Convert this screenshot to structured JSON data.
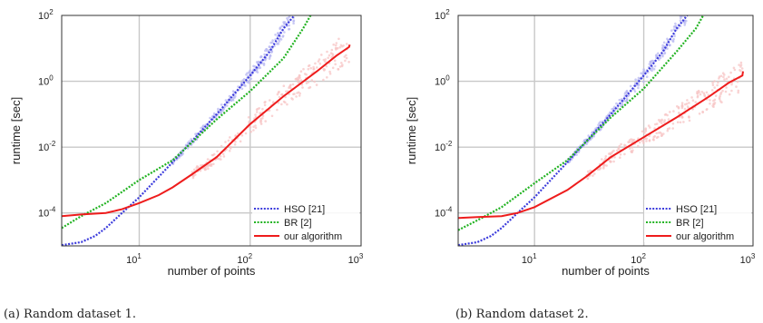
{
  "colors": {
    "hso": "#3b3bdc",
    "hso_band": "#b8b8f2",
    "br": "#22b322",
    "ours": "#ee1c1c",
    "ours_band": "#f7c4c4",
    "grid": "#c8c8c8"
  },
  "chart_data": [
    {
      "type": "line",
      "caption": "(a) Random dataset 1.",
      "xlabel": "number of points",
      "ylabel": "runtime [sec]",
      "xscale": "log",
      "yscale": "log",
      "xlim": [
        2,
        1000
      ],
      "ylim": [
        1e-05,
        100
      ],
      "grid": true,
      "legend_position": "bottom-right",
      "x_ticks": [
        {
          "value": 10,
          "base": "10",
          "exp": "1"
        },
        {
          "value": 100,
          "base": "10",
          "exp": "2"
        },
        {
          "value": 1000,
          "base": "10",
          "exp": "3"
        }
      ],
      "y_ticks": [
        {
          "value": 0.0001,
          "base": "10",
          "exp": "-4"
        },
        {
          "value": 0.01,
          "base": "10",
          "exp": "-2"
        },
        {
          "value": 1,
          "base": "10",
          "exp": "0"
        },
        {
          "value": 100,
          "base": "10",
          "exp": "2"
        }
      ],
      "series": [
        {
          "name": "HSO [21]",
          "style": "dotted",
          "color_key": "hso",
          "band": true,
          "points": [
            [
              2,
              1.05e-05
            ],
            [
              3,
              1.3e-05
            ],
            [
              4,
              2e-05
            ],
            [
              5,
              3.5e-05
            ],
            [
              7,
              0.0001
            ],
            [
              10,
              0.0003
            ],
            [
              20,
              0.0035
            ],
            [
              50,
              0.1
            ],
            [
              100,
              1.5
            ],
            [
              150,
              8
            ],
            [
              200,
              40
            ],
            [
              250,
              100
            ]
          ]
        },
        {
          "name": "BR [2]",
          "style": "dotted",
          "color_key": "br",
          "band": false,
          "points": [
            [
              2,
              3.5e-05
            ],
            [
              3,
              8e-05
            ],
            [
              5,
              0.0002
            ],
            [
              10,
              0.001
            ],
            [
              20,
              0.004
            ],
            [
              50,
              0.07
            ],
            [
              100,
              0.5
            ],
            [
              200,
              5
            ],
            [
              300,
              40
            ],
            [
              350,
              100
            ]
          ]
        },
        {
          "name": "our algorithm",
          "style": "solid",
          "color_key": "ours",
          "band": true,
          "points": [
            [
              2,
              8e-05
            ],
            [
              3,
              9e-05
            ],
            [
              5,
              0.0001
            ],
            [
              7,
              0.00013
            ],
            [
              10,
              0.0002
            ],
            [
              15,
              0.00035
            ],
            [
              20,
              0.0006
            ],
            [
              30,
              0.0015
            ],
            [
              50,
              0.005
            ],
            [
              100,
              0.05
            ],
            [
              200,
              0.35
            ],
            [
              400,
              2
            ],
            [
              600,
              6
            ],
            [
              780,
              11
            ],
            [
              790,
              13
            ]
          ]
        }
      ]
    },
    {
      "type": "line",
      "caption": "(b) Random dataset 2.",
      "xlabel": "number of points",
      "ylabel": "runtime [sec]",
      "xscale": "log",
      "yscale": "log",
      "xlim": [
        2,
        1000
      ],
      "ylim": [
        1e-05,
        100
      ],
      "grid": true,
      "legend_position": "bottom-right",
      "x_ticks": [
        {
          "value": 10,
          "base": "10",
          "exp": "1"
        },
        {
          "value": 100,
          "base": "10",
          "exp": "2"
        },
        {
          "value": 1000,
          "base": "10",
          "exp": "3"
        }
      ],
      "y_ticks": [
        {
          "value": 0.0001,
          "base": "10",
          "exp": "-4"
        },
        {
          "value": 0.01,
          "base": "10",
          "exp": "-2"
        },
        {
          "value": 1,
          "base": "10",
          "exp": "0"
        },
        {
          "value": 100,
          "base": "10",
          "exp": "2"
        }
      ],
      "series": [
        {
          "name": "HSO [21]",
          "style": "dotted",
          "color_key": "hso",
          "band": true,
          "points": [
            [
              2,
              1.05e-05
            ],
            [
              3,
              1.3e-05
            ],
            [
              4,
              2e-05
            ],
            [
              5,
              3.5e-05
            ],
            [
              7,
              0.0001
            ],
            [
              10,
              0.0003
            ],
            [
              20,
              0.0035
            ],
            [
              50,
              0.1
            ],
            [
              100,
              1.5
            ],
            [
              150,
              8
            ],
            [
              200,
              40
            ],
            [
              250,
              100
            ]
          ]
        },
        {
          "name": "BR [2]",
          "style": "dotted",
          "color_key": "br",
          "band": false,
          "points": [
            [
              2,
              3e-05
            ],
            [
              3,
              6e-05
            ],
            [
              5,
              0.00015
            ],
            [
              10,
              0.0008
            ],
            [
              20,
              0.004
            ],
            [
              50,
              0.08
            ],
            [
              100,
              0.6
            ],
            [
              200,
              8
            ],
            [
              300,
              40
            ],
            [
              350,
              100
            ]
          ]
        },
        {
          "name": "our algorithm",
          "style": "solid",
          "color_key": "ours",
          "band": true,
          "points": [
            [
              2,
              7e-05
            ],
            [
              3,
              7.5e-05
            ],
            [
              5,
              8e-05
            ],
            [
              7,
              0.0001
            ],
            [
              10,
              0.00015
            ],
            [
              20,
              0.0005
            ],
            [
              30,
              0.0013
            ],
            [
              50,
              0.005
            ],
            [
              100,
              0.02
            ],
            [
              200,
              0.08
            ],
            [
              400,
              0.35
            ],
            [
              600,
              0.9
            ],
            [
              800,
              1.5
            ],
            [
              810,
              2
            ]
          ]
        }
      ]
    }
  ]
}
